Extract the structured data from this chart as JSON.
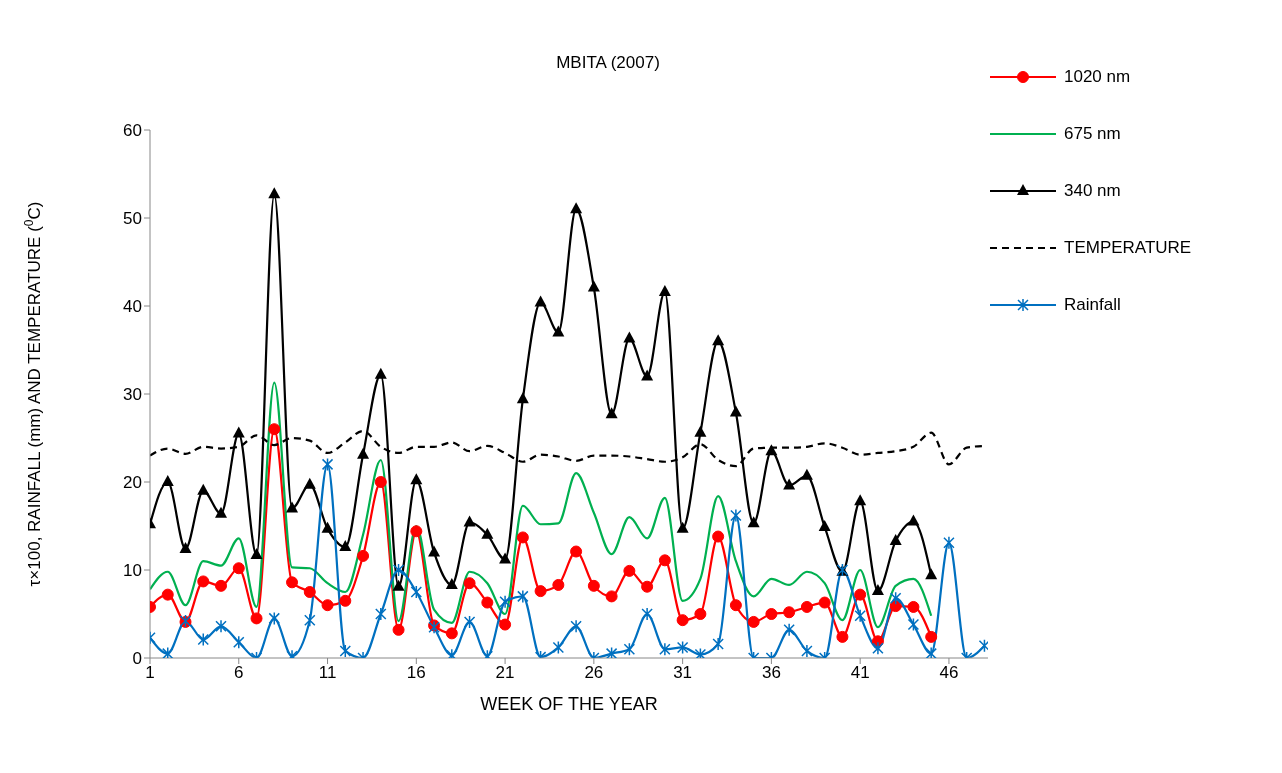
{
  "chart_data": {
    "type": "line",
    "title": "MBITA (2007)",
    "xlabel": "WEEK OF THE YEAR",
    "ylabel": "τ×100, RAINFALL (mm) AND TEMPERATURE ($^{0}$C)",
    "x": [
      1,
      2,
      3,
      4,
      5,
      6,
      7,
      8,
      9,
      10,
      11,
      12,
      13,
      14,
      15,
      16,
      17,
      18,
      19,
      20,
      21,
      22,
      23,
      24,
      25,
      26,
      27,
      28,
      29,
      30,
      31,
      32,
      33,
      34,
      35,
      36,
      37,
      38,
      39,
      40,
      41,
      42,
      43,
      44,
      45,
      46,
      47,
      48
    ],
    "xlim": [
      1,
      48.2
    ],
    "xticks": [
      1,
      6,
      11,
      16,
      21,
      26,
      31,
      36,
      41,
      46
    ],
    "ylim": [
      0,
      60
    ],
    "yticks": [
      0,
      10,
      20,
      30,
      40,
      50,
      60
    ],
    "grid": false,
    "legend": "top right",
    "line_style": "solid",
    "series": [
      {
        "name": "1020 nm",
        "color": "#ff0000",
        "marker": "circle",
        "values": [
          5.8,
          7.2,
          4.1,
          8.7,
          8.2,
          10.2,
          4.5,
          26,
          8.6,
          7.5,
          6,
          6.5,
          11.6,
          20,
          3.2,
          14.4,
          3.7,
          2.8,
          8.5,
          6.3,
          3.8,
          13.7,
          7.6,
          8.3,
          12.1,
          8.2,
          7,
          9.9,
          8.1,
          11.1,
          4.3,
          5,
          13.8,
          6,
          4.1,
          5,
          5.2,
          5.8,
          6.3,
          2.4,
          7.2,
          1.9,
          5.9,
          5.8,
          2.4,
          null,
          null,
          null
        ]
      },
      {
        "name": "675 nm",
        "color": "#00b050",
        "marker": "none",
        "values": [
          7.8,
          9.8,
          6,
          11,
          10.5,
          13.6,
          5.8,
          31.3,
          10.3,
          10.2,
          8.5,
          7.5,
          14,
          22.5,
          4.2,
          15,
          5.5,
          4,
          9.8,
          8.5,
          5,
          17.3,
          15.2,
          15.3,
          21,
          16.5,
          11.8,
          16,
          13.6,
          18.2,
          6.5,
          9,
          18.4,
          11,
          7,
          9,
          8.3,
          9.8,
          8.5,
          4.3,
          10,
          3.5,
          8.2,
          9,
          4.8,
          null,
          null,
          null
        ]
      },
      {
        "name": "340 nm",
        "color": "#000000",
        "marker": "triangle",
        "values": [
          15.2,
          20,
          12.4,
          19,
          16.4,
          25.5,
          11.7,
          52.7,
          17,
          19.7,
          14.7,
          12.6,
          23.1,
          32.2,
          8.1,
          20.2,
          12,
          8.3,
          15.4,
          14,
          11.2,
          29.4,
          40.4,
          37,
          51,
          42.1,
          27.7,
          36.3,
          32,
          41.6,
          14.7,
          25.6,
          36,
          27.9,
          15.3,
          23.5,
          19.6,
          20.7,
          14.9,
          9.8,
          17.8,
          7.6,
          13.3,
          15.5,
          9.4,
          null,
          null,
          null
        ]
      },
      {
        "name": "TEMPERATURE",
        "color": "#000000",
        "marker": "none",
        "line_style": "dashed",
        "values": [
          23,
          23.8,
          23.2,
          24,
          23.8,
          24,
          25.3,
          24.2,
          25,
          24.7,
          23.3,
          24.5,
          25.8,
          24,
          23.3,
          24,
          24,
          24.5,
          23.5,
          24.1,
          23.3,
          22.3,
          23.1,
          22.9,
          22.4,
          23,
          23,
          22.9,
          22.6,
          22.3,
          22.8,
          24.3,
          22.5,
          21.8,
          23.8,
          23.9,
          23.9,
          24,
          24.4,
          23.9,
          23.1,
          23.3,
          23.5,
          24,
          25.6,
          22,
          23.9,
          24.1
        ]
      },
      {
        "name": "Rainfall",
        "color": "#0070c0",
        "marker": "cross",
        "values": [
          2.3,
          0.5,
          4.2,
          2.1,
          3.6,
          1.8,
          0,
          4.5,
          0.2,
          4.3,
          22,
          0.8,
          0,
          5,
          10,
          7.5,
          3.5,
          0.3,
          4.1,
          0.2,
          6.4,
          7,
          0.1,
          1.2,
          3.6,
          0,
          0.5,
          1,
          5,
          1,
          1.2,
          0.4,
          1.6,
          16.2,
          0,
          0,
          3.2,
          0.8,
          0,
          10,
          4.8,
          1.1,
          6.8,
          3.8,
          0.5,
          13.1,
          0,
          1.4
        ]
      }
    ]
  }
}
